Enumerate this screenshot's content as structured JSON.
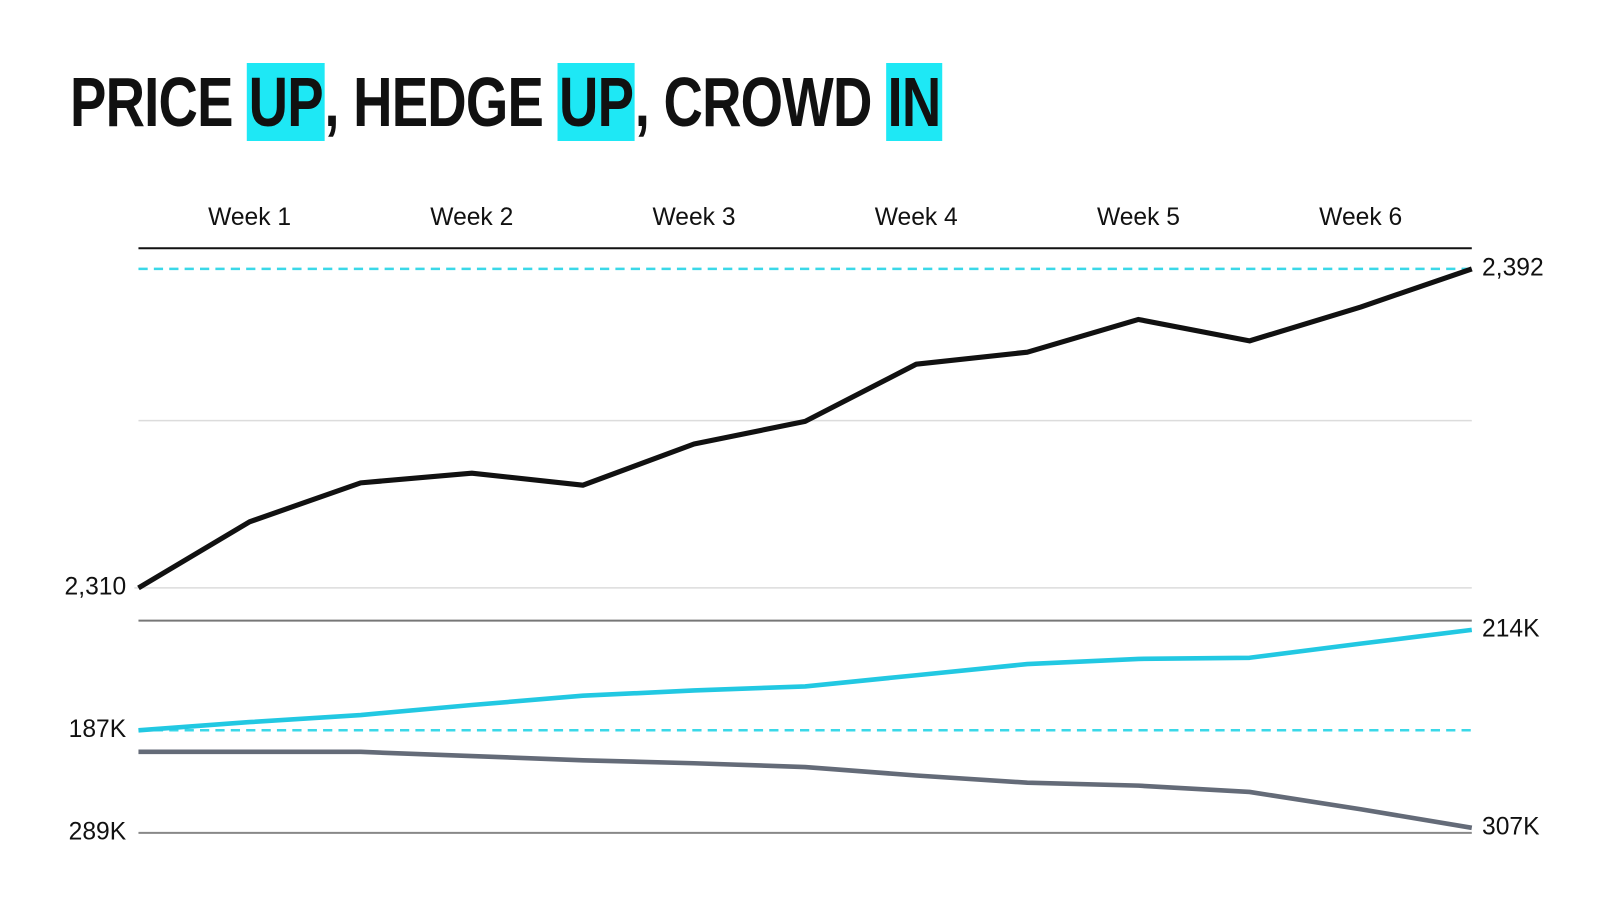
{
  "chart_data": {
    "type": "line",
    "title_parts": [
      {
        "text": "PRICE ",
        "highlight": false
      },
      {
        "text": "UP",
        "highlight": true
      },
      {
        "text": ", HEDGE ",
        "highlight": false
      },
      {
        "text": "UP",
        "highlight": true
      },
      {
        "text": ", CROWD ",
        "highlight": false
      },
      {
        "text": "IN",
        "highlight": true
      }
    ],
    "categories": [
      null,
      "Week 1",
      null,
      "Week 2",
      null,
      "Week 3",
      null,
      "Week 4",
      null,
      "Week 5",
      null,
      "Week 6",
      null
    ],
    "ylim": [
      2301.6,
      2397.3
    ],
    "yticks": [
      {
        "value": 2310,
        "label": "2,310"
      }
    ],
    "grid_lines": [
      2310,
      2353
    ],
    "y2lim": [
      159.4,
      216.5
    ],
    "y3lim": [
      257.9,
      308.2
    ],
    "y3_reversed": true,
    "series": [
      {
        "color": "#111111",
        "axis": "y",
        "values": [
          2310,
          2327,
          2337,
          2339.5,
          2336.4,
          2347,
          2352.8,
          2367.5,
          2370.6,
          2379,
          2373.5,
          2382.2,
          2392
        ],
        "value_labels": [
          "2,310",
          null,
          null,
          null,
          null,
          null,
          null,
          null,
          null,
          null,
          null,
          null,
          "2,392"
        ]
      },
      {
        "color": "#22c8e2",
        "axis": "y2",
        "values": [
          187,
          189.2,
          191.1,
          193.8,
          196.3,
          197.7,
          198.8,
          201.8,
          204.8,
          206.2,
          206.5,
          210.3,
          214
        ],
        "value_labels": [
          "187K",
          null,
          null,
          null,
          null,
          null,
          null,
          null,
          null,
          null,
          null,
          null,
          "214K"
        ]
      },
      {
        "color": "#646b78",
        "axis": "y3",
        "values": [
          289,
          289,
          289,
          290,
          291,
          291.7,
          292.6,
          294.6,
          296.3,
          297,
          298.5,
          302.6,
          307
        ],
        "value_labels": [
          "289K",
          null,
          null,
          null,
          null,
          null,
          null,
          null,
          null,
          null,
          null,
          null,
          "307K"
        ]
      }
    ],
    "reference_lines": [
      {
        "value": 2392,
        "axis": "y",
        "color": "#3ad8e8"
      },
      {
        "value": 187,
        "axis": "y2",
        "color": "#3ad8e8"
      }
    ]
  }
}
